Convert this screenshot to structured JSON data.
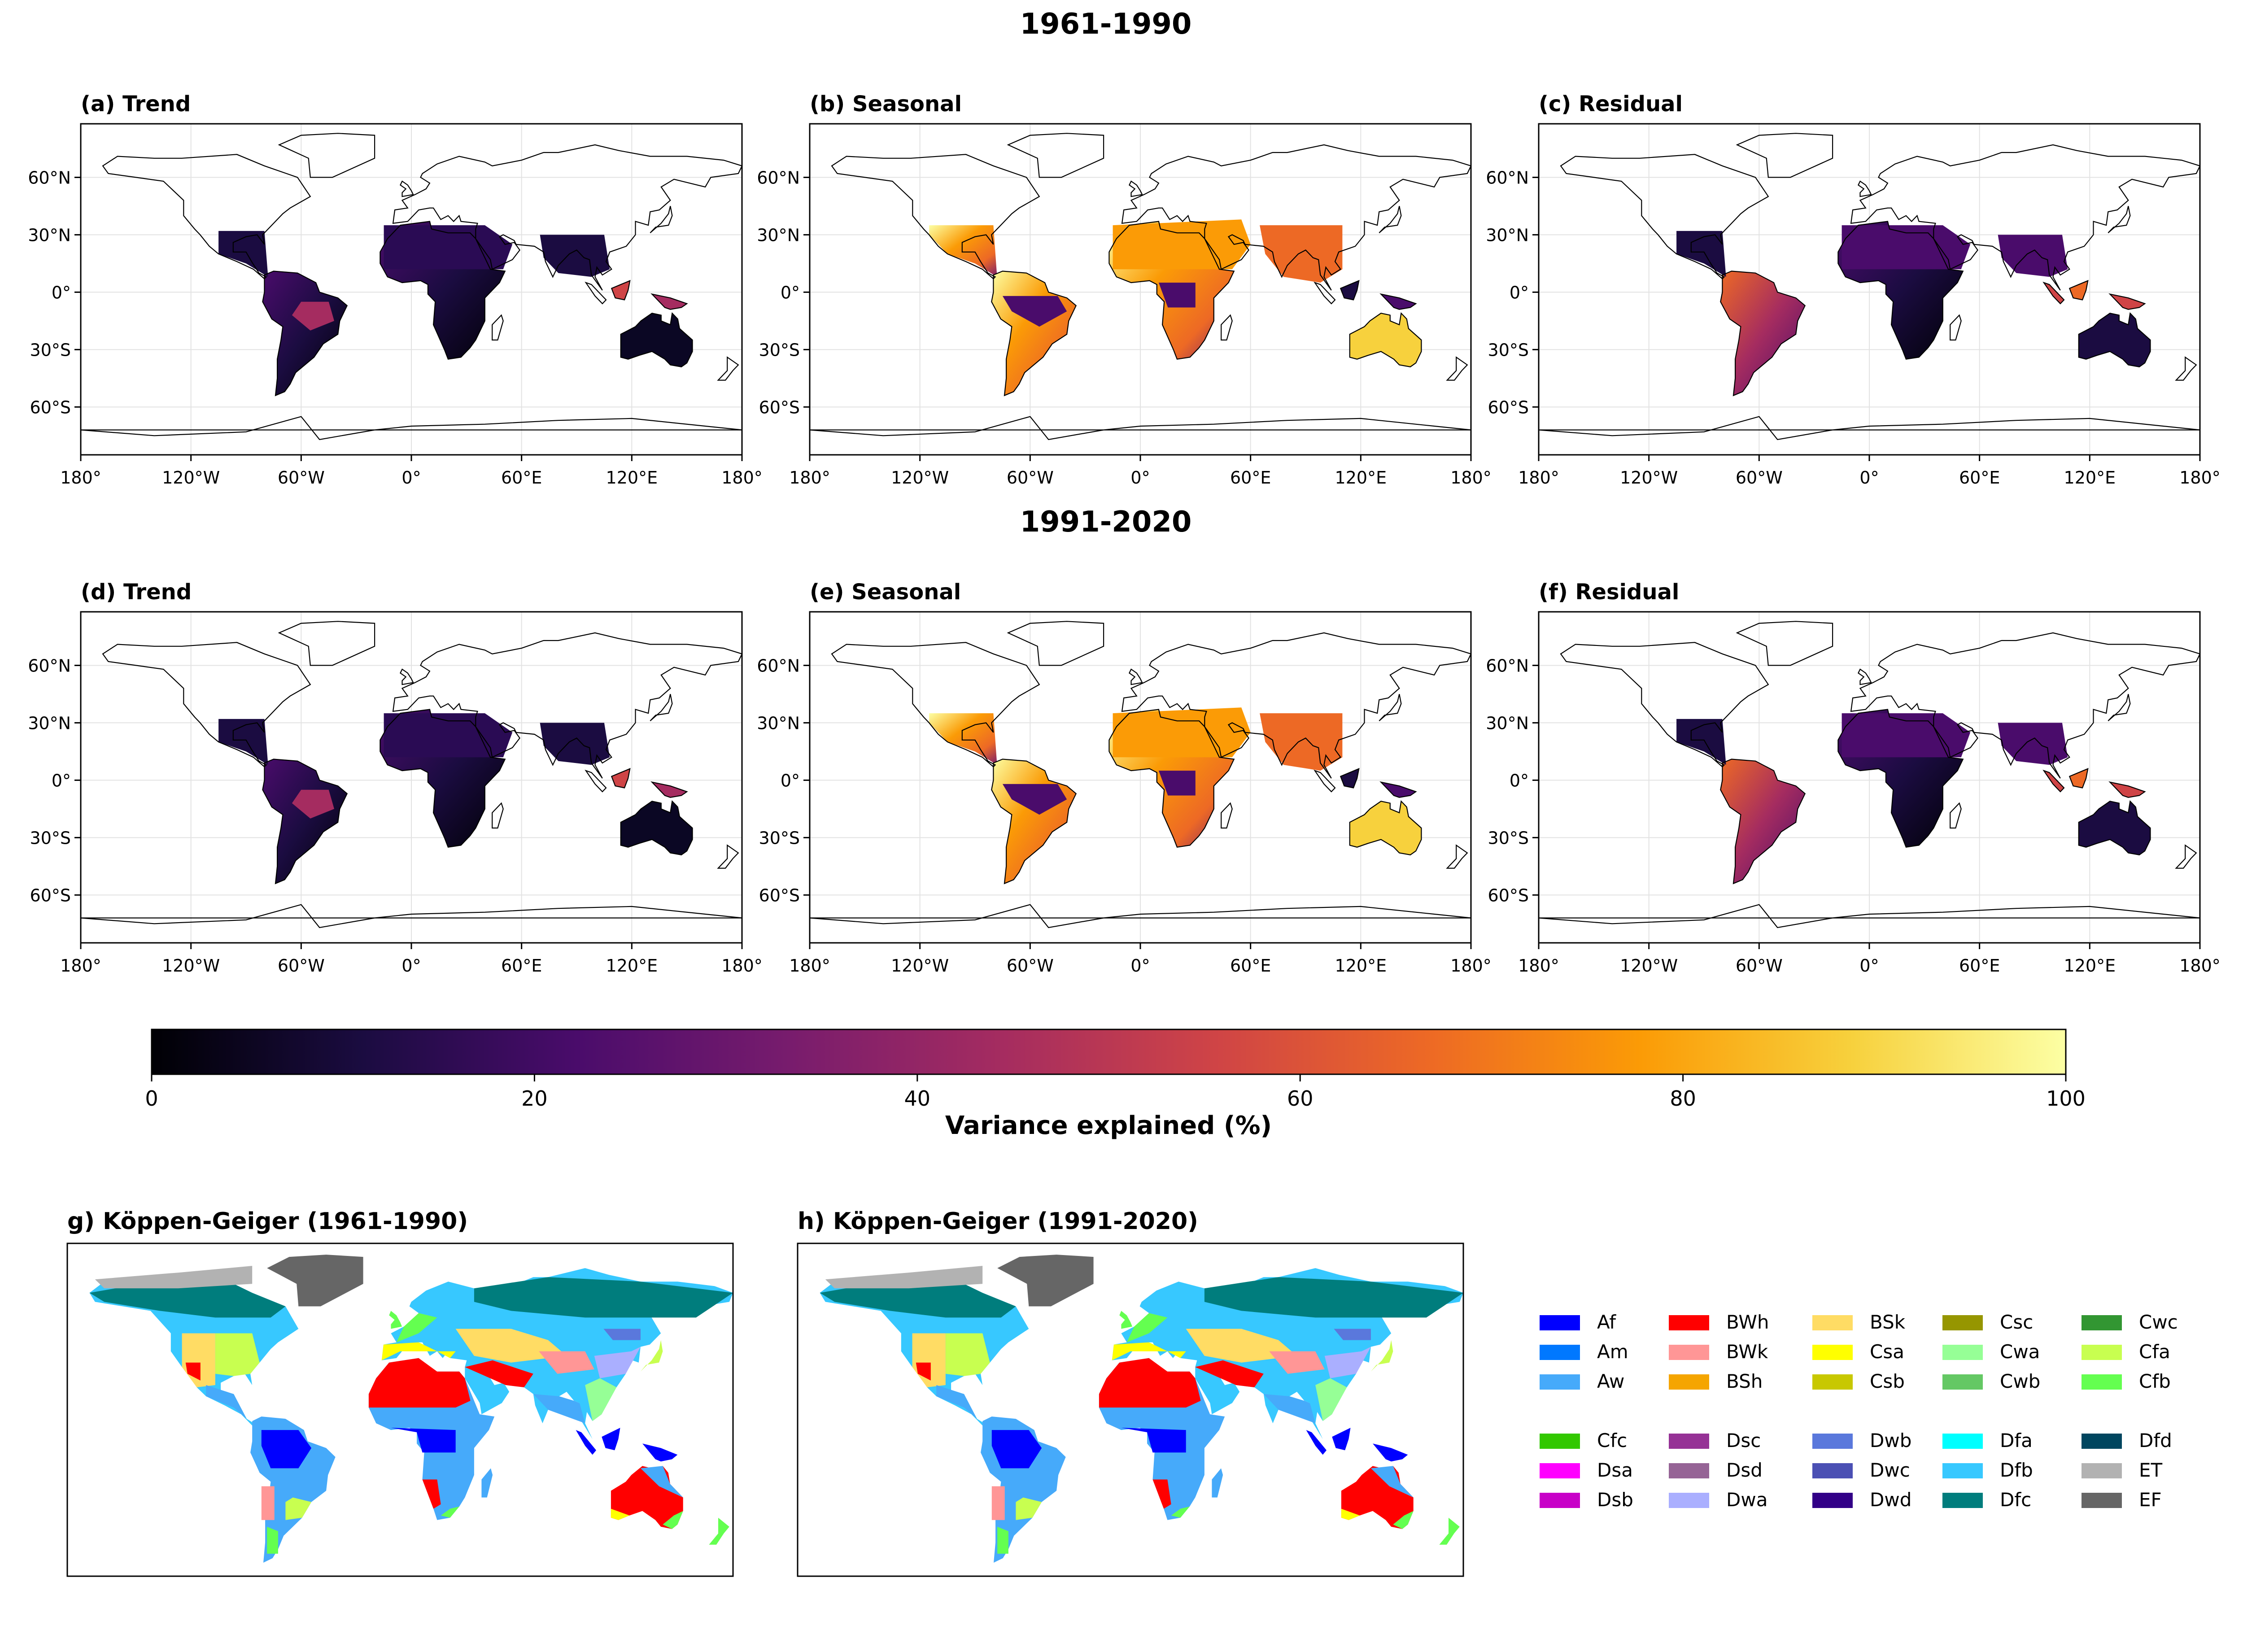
{
  "row_titles": [
    "1961-1990",
    "1991-2020"
  ],
  "panels": [
    {
      "label": "(a) Trend"
    },
    {
      "label": "(b) Seasonal"
    },
    {
      "label": "(c) Residual"
    },
    {
      "label": "(d) Trend"
    },
    {
      "label": "(e) Seasonal"
    },
    {
      "label": "(f) Residual"
    }
  ],
  "map_axes": {
    "lat_ticks": [
      "60°N",
      "30°N",
      "0°",
      "30°S",
      "60°S"
    ],
    "lon_ticks": [
      "180°",
      "120°W",
      "60°W",
      "0°",
      "60°E",
      "120°E",
      "180°"
    ],
    "lat_values": [
      60,
      30,
      0,
      -30,
      -60
    ],
    "lon_values": [
      -180,
      -120,
      -60,
      0,
      60,
      120,
      180
    ]
  },
  "colorbar": {
    "label": "Variance explained (%)",
    "ticks": [
      "0",
      "20",
      "40",
      "60",
      "80",
      "100"
    ],
    "range": [
      0,
      100
    ],
    "colormap": "inferno",
    "colors": [
      "#000004",
      "#1b0c41",
      "#4a0c6b",
      "#781c6d",
      "#a52c60",
      "#cf4446",
      "#ed6925",
      "#fb9b06",
      "#f7d13d",
      "#fcffa4"
    ]
  },
  "koppen_titles": [
    "g) Köppen-Geiger (1961-1990)",
    "h) Köppen-Geiger (1991-2020)"
  ],
  "legend": {
    "group1": [
      {
        "code": "Af",
        "color": "#0000ff"
      },
      {
        "code": "Am",
        "color": "#0078ff"
      },
      {
        "code": "Aw",
        "color": "#46aafa"
      },
      {
        "code": "BWh",
        "color": "#ff0000"
      },
      {
        "code": "BWk",
        "color": "#ff9696"
      },
      {
        "code": "BSh",
        "color": "#f5a500"
      },
      {
        "code": "BSk",
        "color": "#ffdc64"
      },
      {
        "code": "Csa",
        "color": "#ffff00"
      },
      {
        "code": "Csb",
        "color": "#c8c800"
      },
      {
        "code": "Csc",
        "color": "#969600"
      },
      {
        "code": "Cwa",
        "color": "#96ff96"
      },
      {
        "code": "Cwb",
        "color": "#64c864"
      },
      {
        "code": "Cwc",
        "color": "#329632"
      },
      {
        "code": "Cfa",
        "color": "#c8ff50"
      },
      {
        "code": "Cfb",
        "color": "#64ff50"
      }
    ],
    "group2": [
      {
        "code": "Cfc",
        "color": "#32c800"
      },
      {
        "code": "Dsa",
        "color": "#ff00ff"
      },
      {
        "code": "Dsb",
        "color": "#c800c8"
      },
      {
        "code": "Dsc",
        "color": "#963296"
      },
      {
        "code": "Dsd",
        "color": "#966496"
      },
      {
        "code": "Dwa",
        "color": "#aaafff"
      },
      {
        "code": "Dwb",
        "color": "#5a78dc"
      },
      {
        "code": "Dwc",
        "color": "#4b50b4"
      },
      {
        "code": "Dwd",
        "color": "#320087"
      },
      {
        "code": "Dfa",
        "color": "#00ffff"
      },
      {
        "code": "Dfb",
        "color": "#37c8ff"
      },
      {
        "code": "Dfc",
        "color": "#007d7d"
      },
      {
        "code": "Dfd",
        "color": "#00465f"
      },
      {
        "code": "ET",
        "color": "#b2b2b2"
      },
      {
        "code": "EF",
        "color": "#666666"
      }
    ]
  }
}
